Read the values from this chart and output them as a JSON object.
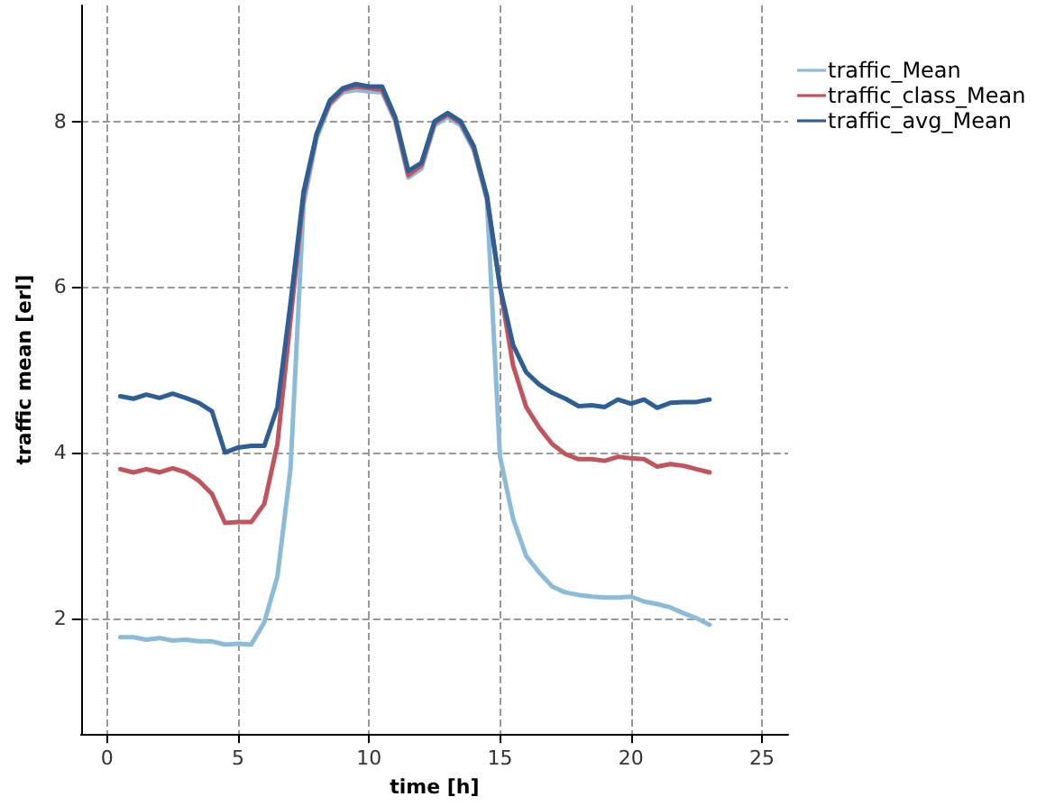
{
  "chart_data": {
    "type": "line",
    "xlabel": "time [h]",
    "ylabel": "traffic mean [erl]",
    "x": [
      0.5,
      1,
      1.5,
      2,
      2.5,
      3,
      3.5,
      4,
      4.5,
      5,
      5.5,
      6,
      6.5,
      7,
      7.5,
      8,
      8.5,
      9,
      9.5,
      10,
      10.5,
      11,
      11.5,
      12,
      12.5,
      13,
      13.5,
      14,
      14.5,
      15,
      15.5,
      16,
      16.5,
      17,
      17.5,
      18,
      18.5,
      19,
      19.5,
      20,
      20.5,
      21,
      21.5,
      22,
      22.5,
      23
    ],
    "series": [
      {
        "name": "traffic_Mean",
        "color": "#8bbbd9",
        "values": [
          1.77,
          1.77,
          1.74,
          1.76,
          1.73,
          1.74,
          1.72,
          1.72,
          1.68,
          1.69,
          1.68,
          1.95,
          2.5,
          3.8,
          7.0,
          7.8,
          8.2,
          8.35,
          8.38,
          8.36,
          8.35,
          8.0,
          7.32,
          7.43,
          7.95,
          8.05,
          7.95,
          7.65,
          7.05,
          3.95,
          3.2,
          2.75,
          2.55,
          2.38,
          2.31,
          2.28,
          2.26,
          2.25,
          2.25,
          2.26,
          2.2,
          2.17,
          2.13,
          2.06,
          2.0,
          1.92
        ]
      },
      {
        "name": "traffic_class_Mean",
        "color": "#c0555e",
        "values": [
          3.8,
          3.76,
          3.8,
          3.76,
          3.81,
          3.76,
          3.66,
          3.5,
          3.15,
          3.16,
          3.16,
          3.38,
          4.1,
          5.6,
          7.1,
          7.85,
          8.22,
          8.38,
          8.42,
          8.4,
          8.38,
          8.03,
          7.35,
          7.47,
          7.98,
          8.08,
          7.98,
          7.68,
          7.08,
          6.0,
          5.05,
          4.55,
          4.3,
          4.1,
          3.98,
          3.92,
          3.92,
          3.9,
          3.95,
          3.93,
          3.92,
          3.83,
          3.86,
          3.84,
          3.8,
          3.76
        ]
      },
      {
        "name": "traffic_avg_Mean",
        "color": "#2e5f94",
        "values": [
          4.68,
          4.65,
          4.7,
          4.66,
          4.71,
          4.66,
          4.6,
          4.5,
          4.0,
          4.06,
          4.08,
          4.08,
          4.55,
          5.8,
          7.15,
          7.85,
          8.25,
          8.4,
          8.45,
          8.42,
          8.42,
          8.05,
          7.4,
          7.5,
          8.0,
          8.1,
          8.0,
          7.7,
          7.1,
          6.0,
          5.3,
          4.97,
          4.82,
          4.72,
          4.65,
          4.56,
          4.57,
          4.55,
          4.64,
          4.59,
          4.64,
          4.54,
          4.6,
          4.61,
          4.61,
          4.64
        ]
      }
    ],
    "xlim": [
      -1,
      26
    ],
    "xticks": [
      0,
      5,
      10,
      15,
      20,
      25
    ],
    "ylim": [
      0.6,
      9.4
    ],
    "yticks": [
      2,
      4,
      6,
      8
    ],
    "grid": true,
    "legend": "top right",
    "marker": "none",
    "line_style": "solid"
  }
}
